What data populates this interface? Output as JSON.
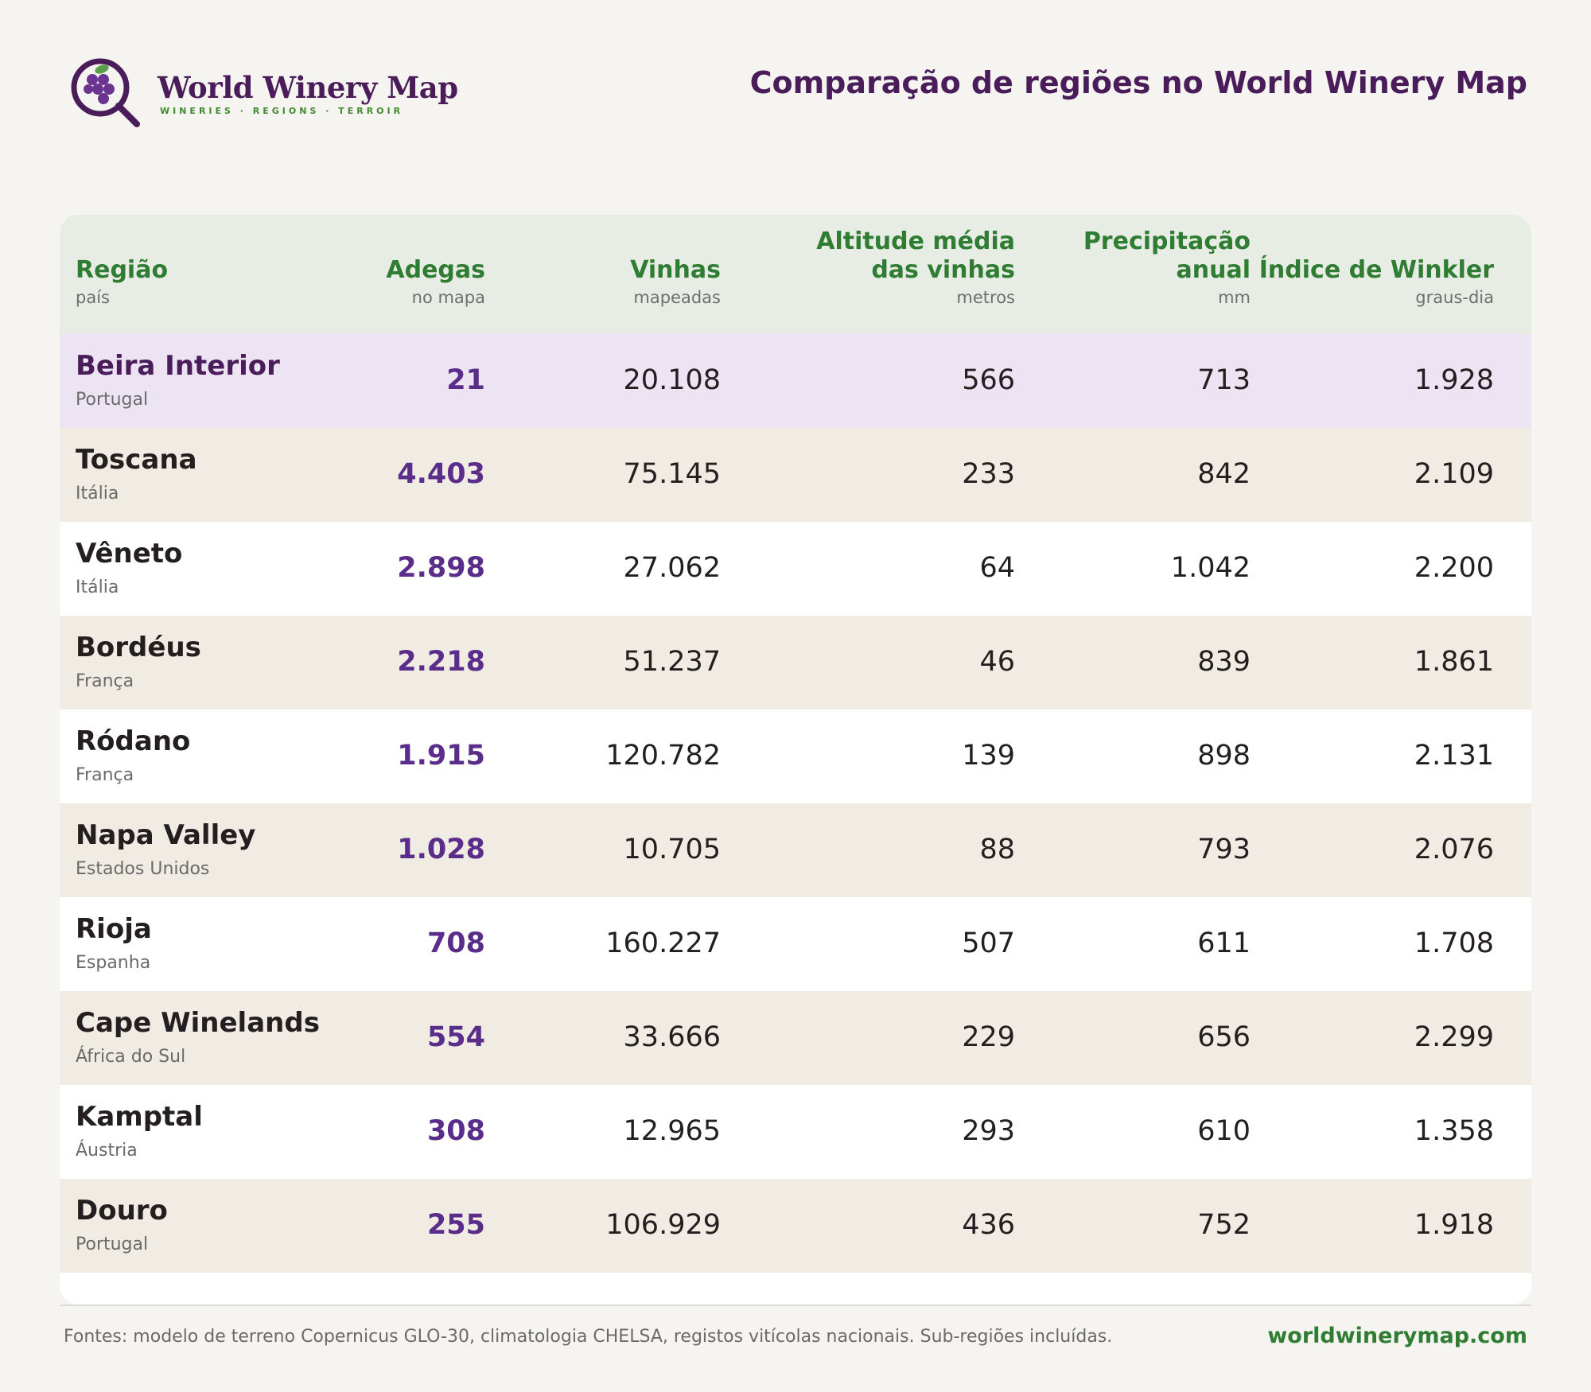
{
  "brand": {
    "name": "World Winery Map",
    "tagline": "WINERIES · REGIONS · TERROIR"
  },
  "page": {
    "title": "Comparação de regiões no World Winery Map"
  },
  "table": {
    "columns": [
      {
        "title": "Região",
        "subtitle": "país"
      },
      {
        "title": "Adegas",
        "subtitle": "no mapa"
      },
      {
        "title": "Vinhas",
        "subtitle": "mapeadas"
      },
      {
        "title_line1": "Altitude média",
        "title_line2": "das vinhas",
        "subtitle": "metros"
      },
      {
        "title_line1": "Precipitação",
        "title_line2": "anual",
        "subtitle": "mm"
      },
      {
        "title": "Índice de Winkler",
        "subtitle": "graus-dia"
      }
    ],
    "rows": [
      {
        "region": "Beira Interior",
        "country": "Portugal",
        "wineries": "21",
        "vineyards": "20.108",
        "altitude": "566",
        "precipitation": "713",
        "winkler": "1.928",
        "highlighted": true
      },
      {
        "region": "Toscana",
        "country": "Itália",
        "wineries": "4.403",
        "vineyards": "75.145",
        "altitude": "233",
        "precipitation": "842",
        "winkler": "2.109"
      },
      {
        "region": "Vêneto",
        "country": "Itália",
        "wineries": "2.898",
        "vineyards": "27.062",
        "altitude": "64",
        "precipitation": "1.042",
        "winkler": "2.200"
      },
      {
        "region": "Bordéus",
        "country": "França",
        "wineries": "2.218",
        "vineyards": "51.237",
        "altitude": "46",
        "precipitation": "839",
        "winkler": "1.861"
      },
      {
        "region": "Ródano",
        "country": "França",
        "wineries": "1.915",
        "vineyards": "120.782",
        "altitude": "139",
        "precipitation": "898",
        "winkler": "2.131"
      },
      {
        "region": "Napa Valley",
        "country": "Estados Unidos",
        "wineries": "1.028",
        "vineyards": "10.705",
        "altitude": "88",
        "precipitation": "793",
        "winkler": "2.076"
      },
      {
        "region": "Rioja",
        "country": "Espanha",
        "wineries": "708",
        "vineyards": "160.227",
        "altitude": "507",
        "precipitation": "611",
        "winkler": "1.708"
      },
      {
        "region": "Cape Winelands",
        "country": "África do Sul",
        "wineries": "554",
        "vineyards": "33.666",
        "altitude": "229",
        "precipitation": "656",
        "winkler": "2.299"
      },
      {
        "region": "Kamptal",
        "country": "Áustria",
        "wineries": "308",
        "vineyards": "12.965",
        "altitude": "293",
        "precipitation": "610",
        "winkler": "1.358"
      },
      {
        "region": "Douro",
        "country": "Portugal",
        "wineries": "255",
        "vineyards": "106.929",
        "altitude": "436",
        "precipitation": "752",
        "winkler": "1.918"
      }
    ]
  },
  "footer": {
    "sources": "Fontes: modelo de terreno Copernicus GLO-30, climatologia CHELSA, registos vitícolas nacionais. Sub-regiões incluídas.",
    "url": "worldwinerymap.com"
  },
  "colors": {
    "brand_purple": "#4a1d5a",
    "accent_green": "#2f7d32",
    "highlight_row": "#ece4f2",
    "striped_row": "#f0ece3",
    "header_bg": "#e7ece4"
  },
  "icons": {
    "logo": "magnifier-grapes-icon"
  }
}
